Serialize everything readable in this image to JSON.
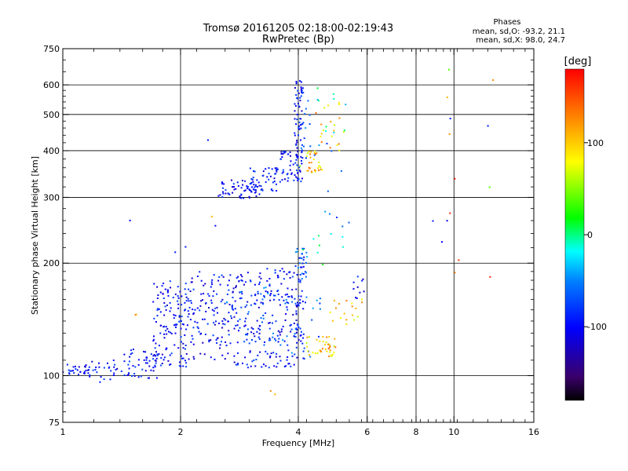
{
  "chart_data": {
    "type": "scatter",
    "title": "Tromsø 20161205 02:18:00-02:19:43",
    "subtitle": "RwPretec (Bp)",
    "xlabel": "Frequency [MHz]",
    "ylabel": "Stationary phase Virtual Height [km]",
    "x_scale": "log",
    "y_scale": "log",
    "xlim": [
      1,
      16
    ],
    "ylim": [
      75,
      750
    ],
    "x_ticks": [
      1,
      2,
      4,
      6,
      8,
      10,
      16
    ],
    "x_tick_labels": [
      "1",
      "2",
      "4",
      "6",
      "8",
      "10",
      "16"
    ],
    "y_ticks": [
      75,
      100,
      200,
      300,
      400,
      500,
      600,
      750
    ],
    "y_tick_labels": [
      "75",
      "100",
      "200",
      "300",
      "400",
      "500",
      "600",
      "750"
    ],
    "grid": true,
    "stats": {
      "heading": "Phases",
      "line_o": "mean, sd,O: -93.2, 21.1",
      "line_x": "mean, sd,X:  98.0, 24.7"
    },
    "colorbar": {
      "label": "[deg]",
      "range": [
        -180,
        180
      ],
      "ticks": [
        100,
        0,
        -100
      ],
      "tick_labels": [
        "100",
        "0",
        "-100"
      ]
    },
    "series": [
      {
        "phase_range": [
          -125,
          -70
        ],
        "clusters": [
          [
            1.0,
            1.17,
            100,
            108,
            28
          ],
          [
            1.17,
            1.4,
            96,
            110,
            25
          ],
          [
            1.4,
            1.75,
            98,
            118,
            50
          ],
          [
            1.7,
            2.1,
            105,
            180,
            140
          ],
          [
            2.1,
            2.7,
            110,
            190,
            120
          ],
          [
            2.7,
            3.3,
            105,
            190,
            110
          ],
          [
            3.3,
            4.0,
            105,
            195,
            110
          ],
          [
            3.95,
            4.15,
            110,
            215,
            40
          ],
          [
            2.5,
            3.2,
            298,
            335,
            60
          ],
          [
            3.0,
            3.7,
            310,
            360,
            50
          ],
          [
            3.6,
            4.1,
            330,
            400,
            50
          ],
          [
            3.9,
            4.1,
            360,
            620,
            60
          ],
          [
            5.5,
            5.9,
            150,
            185,
            10
          ]
        ]
      },
      {
        "phase_range": [
          -85,
          -40
        ],
        "clusters": [
          [
            2.6,
            3.6,
            120,
            175,
            30
          ],
          [
            3.6,
            4.6,
            110,
            165,
            30
          ],
          [
            3.9,
            4.2,
            180,
            220,
            20
          ],
          [
            4.0,
            4.3,
            380,
            600,
            15
          ],
          [
            4.2,
            5.6,
            250,
            600,
            12
          ]
        ]
      },
      {
        "phase_range": [
          -40,
          20
        ],
        "clusters": [
          [
            4.0,
            5.4,
            190,
            240,
            10
          ],
          [
            4.3,
            5.6,
            440,
            610,
            10
          ]
        ]
      },
      {
        "phase_range": [
          60,
          140
        ],
        "clusters": [
          [
            4.2,
            5.0,
            112,
            128,
            40
          ],
          [
            4.2,
            4.6,
            345,
            400,
            30
          ],
          [
            4.4,
            5.6,
            400,
            560,
            20
          ],
          [
            4.8,
            5.6,
            130,
            160,
            10
          ],
          [
            5.2,
            5.9,
            140,
            160,
            8
          ]
        ]
      },
      {
        "phase_range": [
          -110,
          -90
        ],
        "clusters": [
          [
            1.45,
            1.5,
            260,
            262,
            1
          ],
          [
            2.35,
            2.4,
            425,
            428,
            1
          ],
          [
            2.05,
            2.1,
            220,
            225,
            1
          ],
          [
            1.92,
            1.96,
            213,
            216,
            1
          ],
          [
            2.45,
            2.5,
            250,
            252,
            1
          ],
          [
            8.8,
            8.9,
            258,
            262,
            1
          ],
          [
            9.3,
            9.4,
            225,
            232,
            1
          ],
          [
            9.6,
            9.7,
            258,
            262,
            1
          ],
          [
            12.2,
            12.4,
            460,
            470,
            1
          ],
          [
            9.7,
            9.8,
            485,
            490,
            1
          ]
        ]
      },
      {
        "phase_range": [
          95,
          140
        ],
        "clusters": [
          [
            1.5,
            1.55,
            140,
            152,
            2
          ],
          [
            3.4,
            3.5,
            89,
            92,
            2
          ],
          [
            10.0,
            10.1,
            186,
            190,
            1
          ],
          [
            9.7,
            9.8,
            440,
            445,
            1
          ],
          [
            9.6,
            9.7,
            555,
            560,
            1
          ],
          [
            12.5,
            12.6,
            615,
            620,
            1
          ],
          [
            2.4,
            2.45,
            265,
            268,
            1
          ]
        ]
      },
      {
        "phase_range": [
          30,
          50
        ],
        "clusters": [
          [
            9.7,
            9.8,
            655,
            660,
            1
          ],
          [
            12.3,
            12.4,
            316,
            320,
            1
          ],
          [
            4.0,
            4.05,
            360,
            365,
            1
          ]
        ]
      },
      {
        "phase_range": [
          160,
          175
        ],
        "clusters": [
          [
            9.95,
            10.05,
            335,
            340,
            1
          ],
          [
            10.2,
            10.3,
            203,
            206,
            1
          ],
          [
            12.3,
            12.4,
            183,
            186,
            1
          ],
          [
            9.7,
            9.8,
            270,
            273,
            1
          ]
        ]
      }
    ]
  }
}
